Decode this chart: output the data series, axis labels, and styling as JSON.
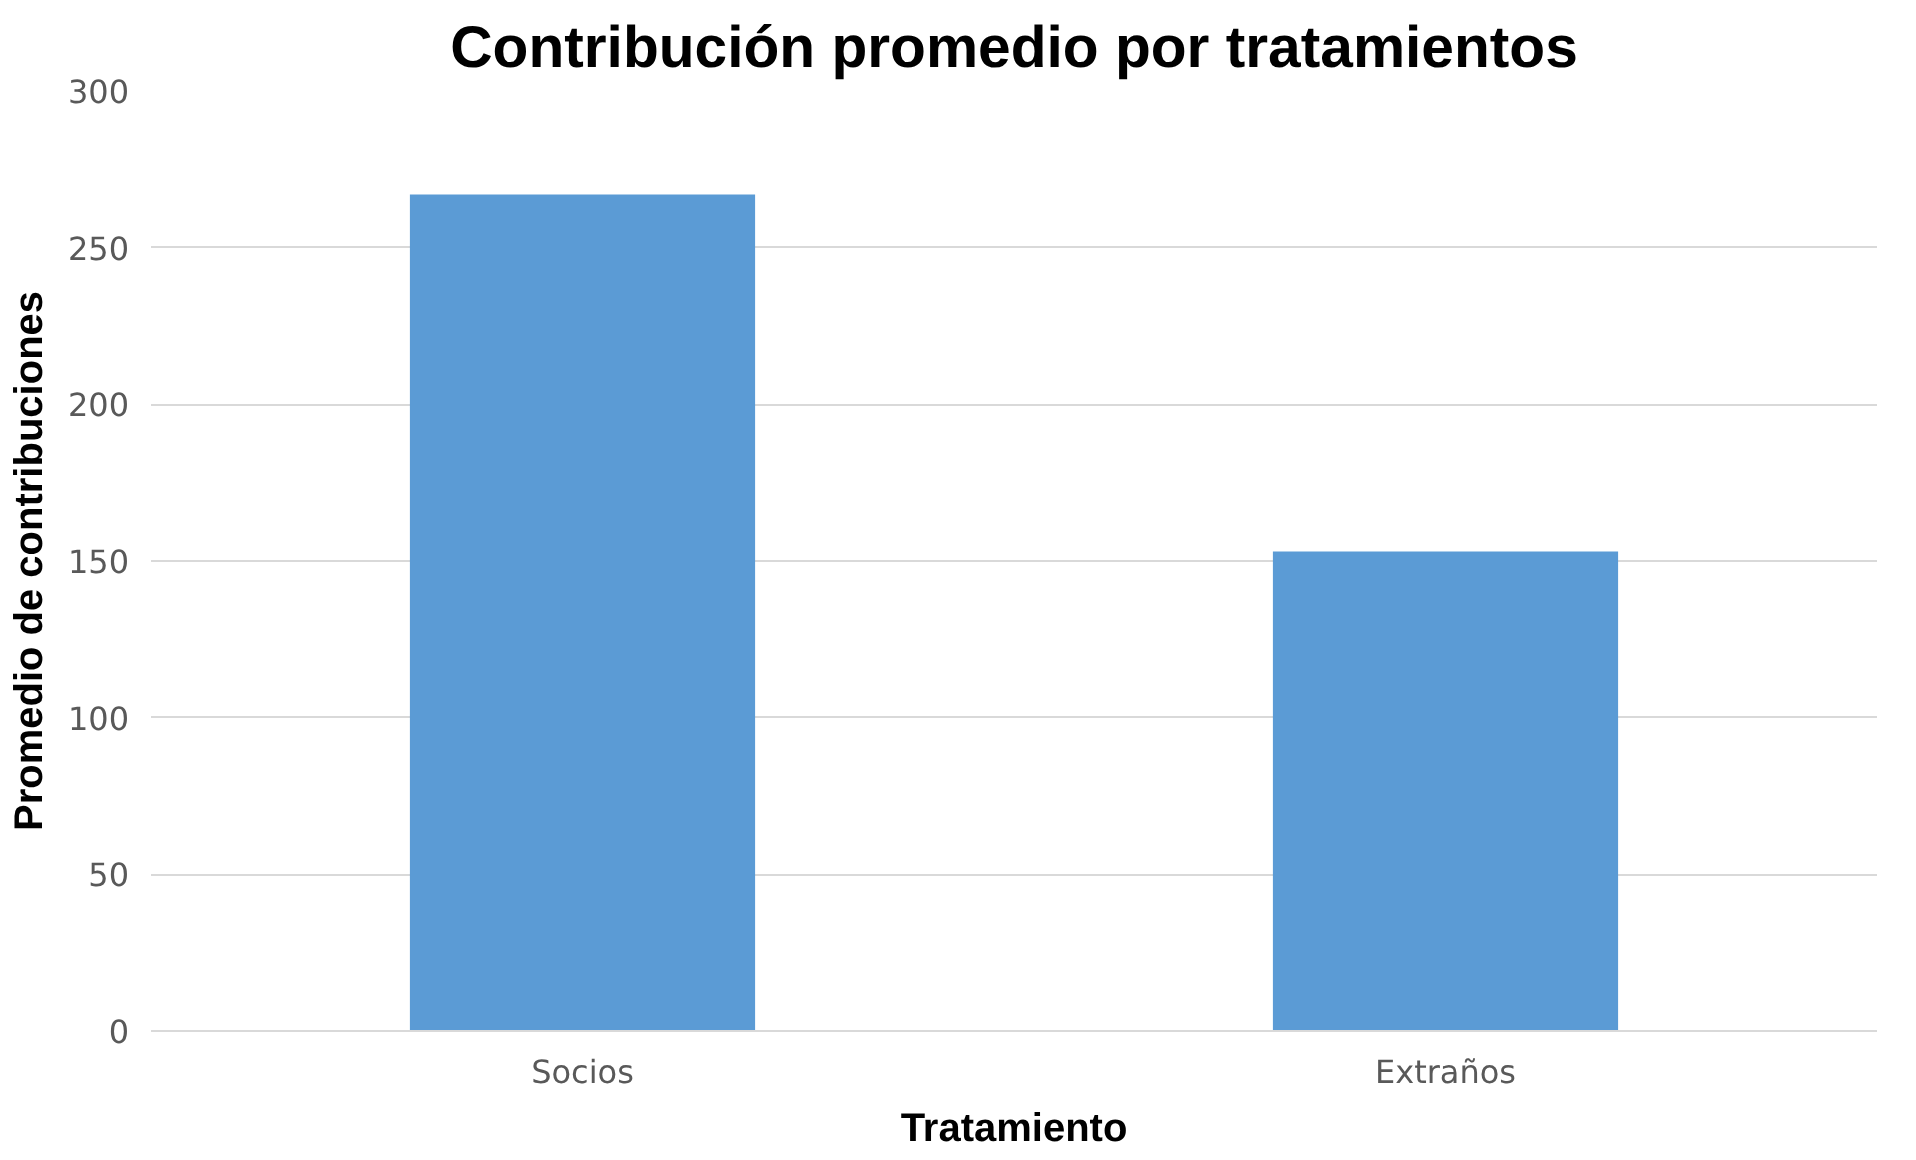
{
  "chart_data": {
    "type": "bar",
    "title": "Contribución promedio por tratamientos",
    "xlabel": "Tratamiento",
    "ylabel": "Promedio de contribuciones",
    "categories": [
      "Socios",
      "Extraños"
    ],
    "series": [
      {
        "color": "#5b9bd5",
        "values": [
          267,
          153
        ]
      }
    ],
    "ylim": [
      0,
      300
    ],
    "yticks": [
      0,
      50,
      100,
      150,
      200,
      250,
      300
    ],
    "grid": "y"
  }
}
